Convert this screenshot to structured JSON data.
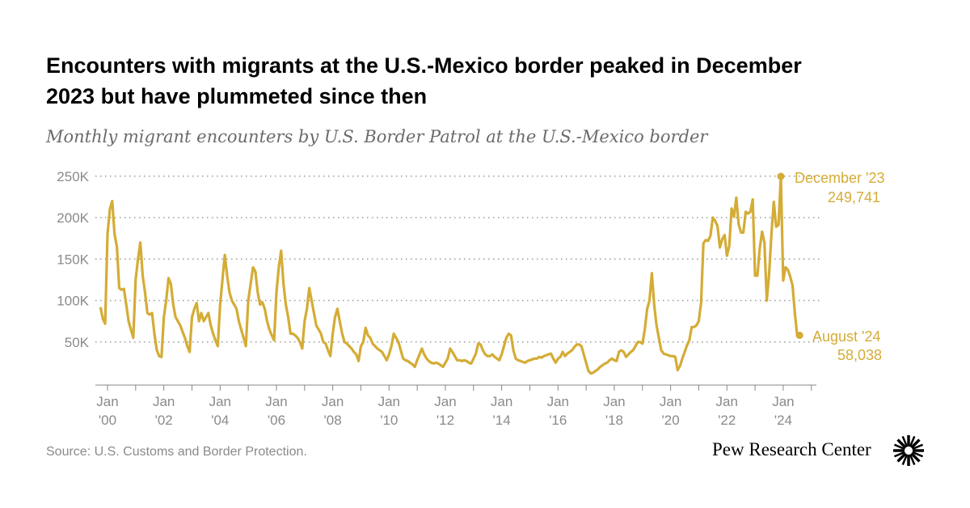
{
  "title": "Encounters with migrants at the U.S.-Mexico border peaked in December 2023 but have plummeted since then",
  "subtitle": "Monthly migrant encounters by U.S. Border Patrol at the U.S.-Mexico border",
  "source": "Source: U.S. Customs and Border Protection.",
  "logo_text": "Pew Research Center",
  "colors": {
    "line": "#d4ac36",
    "grid": "#9a9a9a",
    "axis_text": "#8a8a8a"
  },
  "chart_data": {
    "type": "line",
    "title": "Encounters with migrants at the U.S.-Mexico border peaked in December 2023 but have plummeted since then",
    "subtitle": "Monthly migrant encounters by U.S. Border Patrol at the U.S.-Mexico border",
    "xlabel": "",
    "ylabel": "",
    "ylim": [
      0,
      250000
    ],
    "grid": true,
    "yticks": [
      50000,
      100000,
      150000,
      200000,
      250000
    ],
    "ytick_labels": [
      "50K",
      "100K",
      "150K",
      "200K",
      "250K"
    ],
    "xtick_labels": [
      [
        "Jan",
        "'00"
      ],
      [
        "Jan",
        "'02"
      ],
      [
        "Jan",
        "'04"
      ],
      [
        "Jan",
        "'06"
      ],
      [
        "Jan",
        "'08"
      ],
      [
        "Jan",
        "'10"
      ],
      [
        "Jan",
        "'12"
      ],
      [
        "Jan",
        "'14"
      ],
      [
        "Jan",
        "'16"
      ],
      [
        "Jan",
        "'18"
      ],
      [
        "Jan",
        "'20"
      ],
      [
        "Jan",
        "'22"
      ],
      [
        "Jan",
        "'24"
      ]
    ],
    "xtick_years": [
      2000,
      2002,
      2004,
      2006,
      2008,
      2010,
      2012,
      2014,
      2016,
      2018,
      2020,
      2022,
      2024
    ],
    "start": "1999-10",
    "values_thousands": [
      92,
      78,
      72,
      180,
      210,
      220,
      180,
      165,
      115,
      113,
      114,
      95,
      75,
      65,
      55,
      125,
      150,
      170,
      130,
      110,
      85,
      83,
      85,
      60,
      40,
      33,
      32,
      80,
      100,
      127,
      120,
      95,
      80,
      75,
      70,
      62,
      55,
      45,
      38,
      80,
      90,
      97,
      75,
      85,
      75,
      80,
      85,
      70,
      60,
      52,
      45,
      95,
      125,
      155,
      130,
      110,
      100,
      95,
      90,
      75,
      65,
      55,
      45,
      100,
      120,
      140,
      135,
      110,
      95,
      98,
      90,
      75,
      65,
      58,
      52,
      110,
      140,
      160,
      120,
      95,
      80,
      60,
      60,
      58,
      55,
      50,
      42,
      75,
      90,
      115,
      100,
      85,
      70,
      65,
      60,
      50,
      48,
      40,
      33,
      60,
      80,
      90,
      75,
      60,
      50,
      48,
      45,
      42,
      38,
      35,
      27,
      45,
      50,
      67,
      58,
      55,
      48,
      45,
      42,
      40,
      38,
      33,
      28,
      35,
      45,
      60,
      55,
      50,
      40,
      30,
      28,
      27,
      25,
      23,
      20,
      28,
      35,
      42,
      35,
      30,
      27,
      25,
      24,
      25,
      24,
      22,
      20,
      25,
      30,
      42,
      38,
      33,
      28,
      28,
      27,
      28,
      27,
      25,
      24,
      30,
      36,
      48,
      47,
      40,
      35,
      33,
      33,
      35,
      32,
      30,
      28,
      35,
      45,
      55,
      60,
      58,
      40,
      30,
      28,
      27,
      26,
      25,
      27,
      28,
      29,
      30,
      30,
      32,
      31,
      33,
      34,
      35,
      36,
      30,
      25,
      30,
      32,
      38,
      33,
      36,
      38,
      40,
      44,
      47,
      47,
      45,
      35,
      25,
      15,
      12,
      13,
      15,
      17,
      20,
      22,
      24,
      25,
      28,
      30,
      28,
      27,
      38,
      40,
      38,
      32,
      35,
      38,
      40,
      45,
      50,
      50,
      48,
      65,
      90,
      100,
      133,
      95,
      70,
      55,
      40,
      36,
      35,
      34,
      33,
      33,
      32,
      16,
      21,
      30,
      38,
      46,
      52,
      68,
      68,
      70,
      75,
      97,
      169,
      173,
      172,
      178,
      200,
      196,
      190,
      164,
      174,
      179,
      154,
      166,
      211,
      201,
      224,
      192,
      182,
      182,
      207,
      205,
      207,
      222,
      130,
      130,
      163,
      183,
      170,
      100,
      132,
      181,
      219,
      189,
      191,
      249.741,
      124,
      140,
      137,
      129,
      118,
      84,
      57,
      58.038
    ],
    "annotations": [
      {
        "label": "December '23",
        "value": "249,741",
        "date": "2023-12"
      },
      {
        "label": "August '24",
        "value": "58,038",
        "date": "2024-08"
      }
    ]
  }
}
